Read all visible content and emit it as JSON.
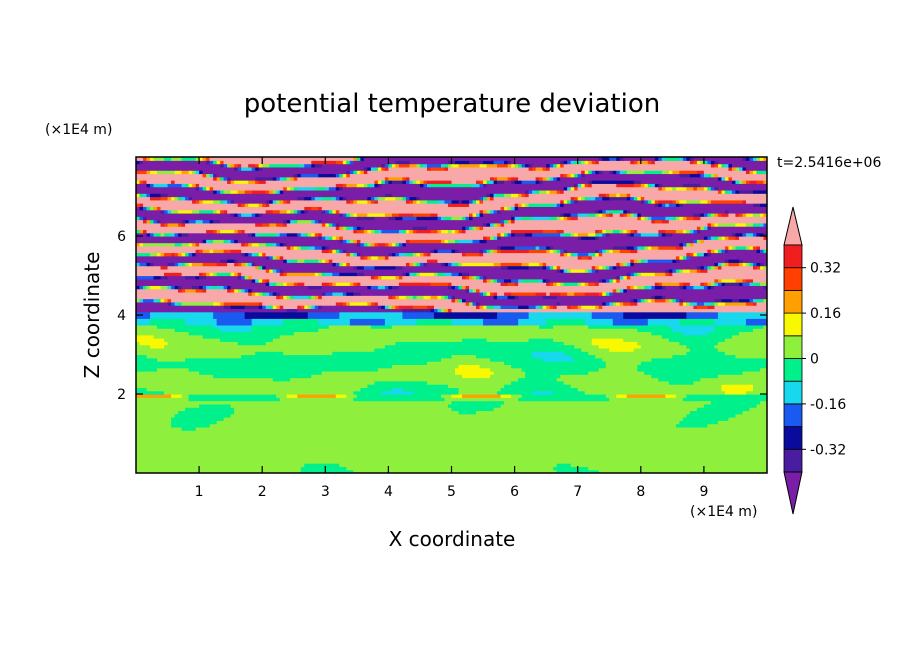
{
  "chart_data": {
    "type": "heatmap",
    "title": "potential temperature deviation",
    "xlabel": "X coordinate",
    "ylabel": "Z coordinate",
    "x_unit": "(×1E4 m)",
    "y_unit": "(×1E4 m)",
    "time_label": "t=2.5416e+06",
    "xlim": [
      0,
      10
    ],
    "ylim": [
      0,
      8
    ],
    "x_ticks": [
      "1",
      "2",
      "3",
      "4",
      "5",
      "6",
      "7",
      "8",
      "9"
    ],
    "y_ticks": [
      "2",
      "4",
      "6"
    ],
    "colorbar": {
      "levels": [
        -0.4,
        -0.32,
        -0.24,
        -0.16,
        -0.08,
        0,
        0.08,
        0.16,
        0.24,
        0.32,
        0.4
      ],
      "colors": [
        "#4a1da0",
        "#0a0a9c",
        "#1a5af0",
        "#18d8ee",
        "#00f08c",
        "#8ef03c",
        "#f8f800",
        "#ffa000",
        "#ff4000",
        "#f01e1e"
      ],
      "over_color": "#f8a8a8",
      "under_color": "#7a1ea8",
      "labels": [
        "0.32",
        "0.16",
        "0",
        "-0.16",
        "-0.32"
      ],
      "label_values": [
        0.32,
        0.16,
        0,
        -0.16,
        -0.32
      ]
    }
  }
}
